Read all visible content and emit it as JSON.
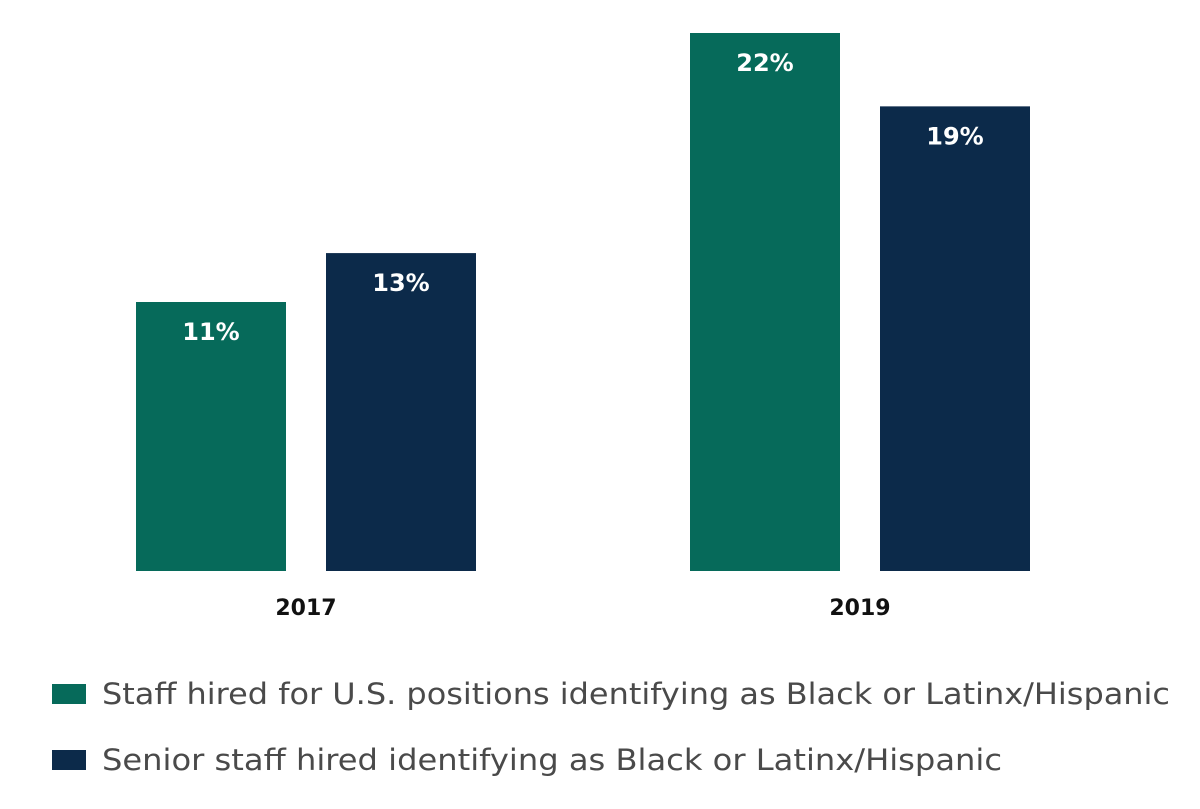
{
  "chart_data": {
    "type": "bar",
    "categories": [
      "2017",
      "2019"
    ],
    "series": [
      {
        "name": "Staff hired for U.S. positions identifying as Black or Latinx/Hispanic",
        "values": [
          11,
          22
        ],
        "labels": [
          "11%",
          "22%"
        ],
        "color": "#066a5a"
      },
      {
        "name": "Senior staff hired identifying as Black or Latinx/Hispanic",
        "values": [
          13,
          19
        ],
        "labels": [
          "13%",
          "19%"
        ],
        "color": "#0c2a4a"
      }
    ],
    "ylim": [
      0,
      22
    ],
    "grid": false,
    "legend": "bottom-left",
    "title": "",
    "xlabel": "",
    "ylabel": ""
  }
}
